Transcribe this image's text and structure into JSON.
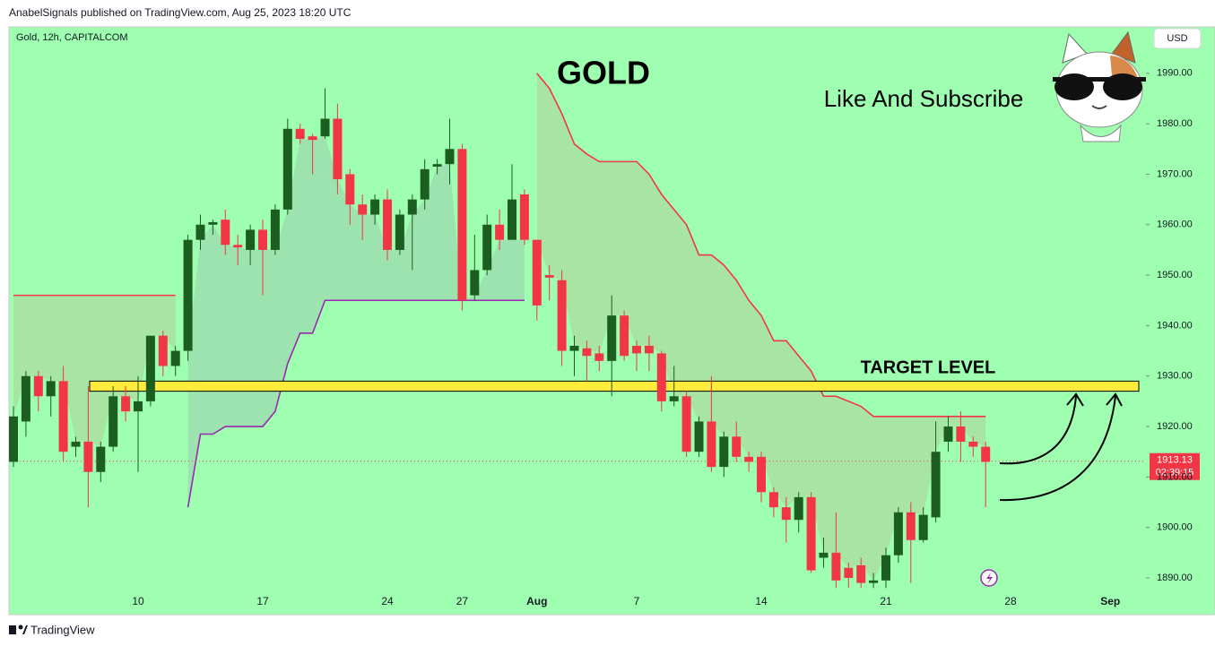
{
  "header": "AnabelSignals published on TradingView.com, Aug 25, 2023 18:20 UTC",
  "footer": "TradingView",
  "chart_data": {
    "type": "candlestick",
    "title": "GOLD",
    "annotation": "Like And Subscribe",
    "symbol": "Gold, 12h, CAPITALCOM",
    "currency": "USD",
    "up_color": "#1b5e20",
    "down_color": "#f23645",
    "background": "#9effb0",
    "grid": false,
    "categories": [
      null,
      null,
      null,
      null,
      null,
      null,
      null,
      null,
      null,
      null,
      "10",
      null,
      null,
      null,
      null,
      null,
      null,
      null,
      null,
      null,
      "17",
      null,
      null,
      null,
      null,
      null,
      null,
      null,
      null,
      null,
      "24",
      null,
      null,
      null,
      null,
      null,
      "27",
      null,
      null,
      null,
      null,
      null,
      "Aug",
      null,
      null,
      null,
      null,
      null,
      null,
      null,
      "7",
      null,
      null,
      null,
      null,
      null,
      null,
      null,
      null,
      null,
      "14",
      null,
      null,
      null,
      null,
      null,
      null,
      null,
      null,
      null,
      "21",
      null,
      null,
      null,
      null,
      null,
      null,
      null,
      null,
      null,
      "28",
      null,
      null,
      null,
      null,
      null,
      null,
      null,
      "Sep"
    ],
    "open": [
      1913,
      1921,
      1930,
      1926,
      1929,
      1916,
      1917,
      1911,
      1916,
      1926,
      1923,
      1925,
      1938,
      1932,
      1935,
      1957,
      1960,
      1961,
      1956,
      1955,
      1959,
      1955,
      1963,
      1979,
      1977.5,
      1977.5,
      1981,
      1970,
      1964,
      1962,
      1965,
      1955,
      1962,
      1965,
      1971.5,
      1972,
      1975,
      1946,
      1951,
      1960,
      1957,
      1966,
      1957,
      1950,
      1949,
      1935,
      1935.5,
      1934.5,
      1933,
      1942,
      1936,
      1936,
      1934.5,
      1925,
      1926,
      1915,
      1921,
      1912,
      1918,
      1914,
      1914,
      1907,
      1904,
      1901.5,
      1906,
      1894,
      1895,
      1892,
      1892.5,
      1889,
      1889.5,
      1894.5,
      1903,
      1897.5,
      1902,
      1917,
      1920,
      1917,
      1916,
      null,
      null,
      null,
      null,
      null,
      null,
      null,
      null,
      null,
      null
    ],
    "high": [
      1924,
      1931,
      1931,
      1930,
      1932,
      1918,
      1928,
      1917,
      1928,
      1928,
      1930,
      1938,
      1939,
      1936,
      1958,
      1962,
      1961,
      1963,
      1958,
      1960,
      1961,
      1964,
      1981,
      1980,
      1978,
      1987,
      1984,
      1971,
      1966,
      1966,
      1967,
      1963,
      1966,
      1973,
      1973,
      1981,
      1976,
      1958,
      1962,
      1963,
      1972,
      1967,
      1957,
      1952,
      1951,
      1938,
      1937,
      1936,
      1946,
      1943,
      1937,
      1938,
      1935,
      1932,
      1927,
      1922,
      1930,
      1919,
      1921,
      1915,
      1915,
      1908,
      1906,
      1907,
      1907,
      1898,
      1903,
      1893,
      1894,
      1891,
      1896,
      1904,
      1905,
      1904,
      1921,
      1922,
      1923,
      1918,
      1917,
      null,
      null,
      null,
      null,
      null,
      null,
      null,
      null,
      null,
      null
    ],
    "low": [
      1912,
      1918,
      1923,
      1922,
      1913,
      1914,
      1904,
      1909,
      1915,
      1921,
      1911,
      1924,
      1930,
      1930,
      1933,
      1955,
      1958,
      1954,
      1952,
      1952,
      1946,
      1954,
      1962,
      1976,
      1970,
      1977,
      1966,
      1960,
      1957,
      1960,
      1953,
      1954,
      1951,
      1963,
      1970,
      1968,
      1943,
      1945,
      1950,
      1955,
      1957,
      1956,
      1941,
      1945,
      1932,
      1930,
      1929,
      1931,
      1926,
      1933,
      1931,
      1931,
      1923,
      1924,
      1914,
      1914,
      1911,
      1910,
      1913,
      1911,
      1905,
      1902,
      1897,
      1899,
      1891,
      1892,
      1888,
      1888,
      1888,
      1888,
      1888,
      1893,
      1889,
      1897,
      1901,
      1915,
      1913,
      1914,
      1904,
      null,
      null,
      null,
      null,
      null,
      null,
      null,
      null,
      null,
      null
    ],
    "close": [
      1922,
      1930,
      1926,
      1929,
      1915,
      1917,
      1911,
      1916,
      1926,
      1923,
      1925,
      1938,
      1932,
      1935,
      1957,
      1960,
      1960.5,
      1956,
      1955.5,
      1959,
      1955,
      1963,
      1979,
      1977,
      1976.8,
      1981,
      1969,
      1964,
      1962,
      1965,
      1955,
      1962,
      1965,
      1971,
      1972,
      1975,
      1945,
      1951,
      1960,
      1957,
      1965,
      1957,
      1944,
      1949.5,
      1935,
      1936,
      1934,
      1933,
      1942,
      1934,
      1934.5,
      1934.5,
      1925,
      1926,
      1915,
      1921,
      1912,
      1918,
      1914,
      1913,
      1907,
      1904,
      1901.5,
      1906,
      1891.5,
      1895,
      1889.5,
      1890,
      1889,
      1889.5,
      1894.5,
      1903,
      1897.5,
      1902.5,
      1915,
      1920,
      1917,
      1916,
      1913,
      null,
      null,
      null,
      null,
      null,
      null,
      null,
      null,
      null,
      null
    ],
    "overlays": [
      {
        "color": "#f23645",
        "values": [
          1946,
          1946,
          1946,
          1946,
          1946,
          1946,
          1946,
          1946,
          1946,
          1946,
          1946,
          1946,
          1946,
          1946,
          null,
          null,
          null,
          null,
          null,
          null,
          null,
          null,
          null,
          null,
          null,
          null,
          null,
          null,
          null,
          null,
          null,
          null,
          null,
          null,
          null,
          null,
          null,
          null,
          null,
          null,
          null,
          null,
          1990,
          1987,
          1982,
          1976,
          1974,
          1972.5,
          1972.5,
          1972.5,
          1972.5,
          1970,
          1966,
          1963,
          1960,
          1954,
          1954,
          1952,
          1949,
          1945,
          1942,
          1937,
          1937,
          1934,
          1931,
          1926,
          1926,
          1925,
          1924,
          1922,
          1922,
          1922,
          1922,
          1922,
          1922,
          1922,
          1922,
          1922,
          1922,
          null,
          null,
          null,
          null,
          null,
          null,
          null,
          null,
          null,
          null
        ]
      },
      {
        "color": "#9c27b0",
        "values": [
          null,
          null,
          null,
          null,
          null,
          null,
          null,
          null,
          null,
          null,
          null,
          null,
          null,
          null,
          1904,
          1918.5,
          1918.5,
          1920,
          1920,
          1920,
          1920,
          1923,
          1932.5,
          1938.5,
          1938.5,
          1945,
          1945,
          1945,
          1945,
          1945,
          1945,
          1945,
          1945,
          1945,
          1945,
          1945,
          1945,
          1945,
          1945,
          1945,
          1945,
          1945,
          null,
          null,
          null,
          null,
          null,
          null,
          null,
          null,
          null,
          null,
          null,
          null,
          null,
          null,
          null,
          null,
          null,
          null,
          null,
          null,
          null,
          null,
          null,
          null,
          null,
          null,
          null,
          null,
          null,
          null,
          null,
          null,
          null,
          null,
          null,
          null,
          null,
          null,
          null,
          null,
          null,
          null,
          null,
          null,
          null,
          null,
          null
        ]
      }
    ],
    "target_level": {
      "label": "TARGET LEVEL",
      "low": 1927,
      "high": 1929,
      "color": "#ffeb3b"
    },
    "last_price": 1913.13,
    "countdown": "02:39:15",
    "ylim": [
      1882.9,
      1999.2
    ],
    "yticks": [
      {
        "value": 1890,
        "label": "1890.00"
      },
      {
        "value": 1900,
        "label": "1900.00"
      },
      {
        "value": 1910,
        "label": "1910.00"
      },
      {
        "value": 1920,
        "label": "1920.00"
      },
      {
        "value": 1930,
        "label": "1930.00"
      },
      {
        "value": 1940,
        "label": "1940.00"
      },
      {
        "value": 1950,
        "label": "1950.00"
      },
      {
        "value": 1960,
        "label": "1960.00"
      },
      {
        "value": 1970,
        "label": "1970.00"
      },
      {
        "value": 1980,
        "label": "1980.00"
      },
      {
        "value": 1990,
        "label": "1990.00"
      }
    ]
  }
}
